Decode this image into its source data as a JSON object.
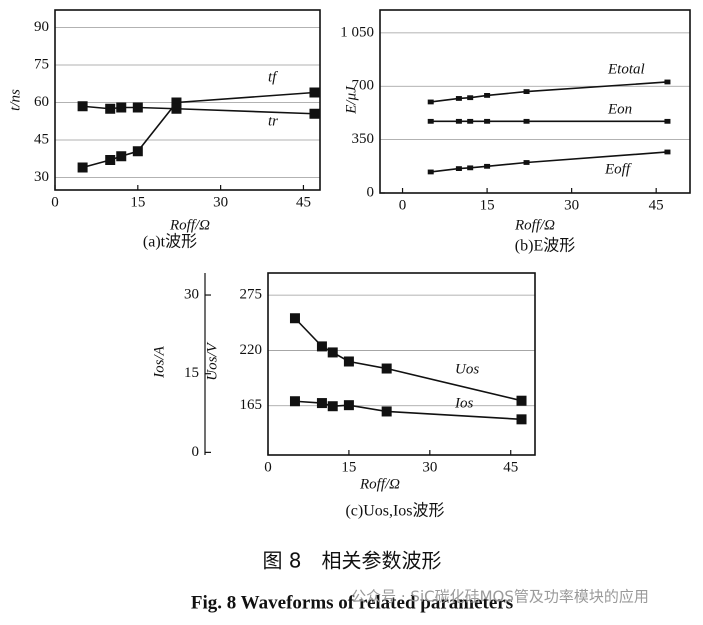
{
  "chart_data": [
    {
      "type": "line",
      "caption": "(a)t波形",
      "xlabel": "Roff/Ω",
      "ylabel": "t/ns",
      "x": [
        5,
        10,
        12,
        15,
        22,
        47
      ],
      "xlim": [
        0,
        48
      ],
      "xticks": [
        0,
        15,
        30,
        45
      ],
      "ylim": [
        25,
        97
      ],
      "yticks": [
        30,
        45,
        60,
        75,
        90
      ],
      "grid": true,
      "series": [
        {
          "name": "tf",
          "color": "#111111",
          "values": [
            34,
            37,
            38.5,
            40.5,
            60,
            64
          ]
        },
        {
          "name": "tr",
          "color": "#111111",
          "values": [
            58.5,
            57.5,
            58,
            58,
            57.5,
            55.5
          ]
        }
      ]
    },
    {
      "type": "line",
      "caption": "(b)E波形",
      "xlabel": "Roff/Ω",
      "ylabel": "E/μJ",
      "x": [
        5,
        10,
        12,
        15,
        22,
        47
      ],
      "xlim": [
        -4,
        51
      ],
      "xticks": [
        0,
        15,
        30,
        45
      ],
      "ylim": [
        0,
        1200
      ],
      "yticks": [
        0,
        350,
        700,
        {
          "value": 1050,
          "label": "1 050"
        }
      ],
      "grid": true,
      "series": [
        {
          "name": "Etotal",
          "color": "#111111",
          "values": [
            597,
            620,
            625,
            640,
            665,
            728
          ]
        },
        {
          "name": "Eon",
          "color": "#111111",
          "values": [
            470,
            470,
            470,
            470,
            470,
            470
          ]
        },
        {
          "name": "Eoff",
          "color": "#111111",
          "values": [
            138,
            160,
            165,
            175,
            200,
            269
          ]
        }
      ]
    },
    {
      "type": "line",
      "caption": "(c)Uos,Ios波形",
      "xlabel": "Roff/Ω",
      "ylabel": "Uos/V",
      "y2label": "Ios/A",
      "x": [
        5,
        10,
        12,
        15,
        22,
        47
      ],
      "xlim": [
        0,
        49.5
      ],
      "xticks": [
        0,
        15,
        30,
        45
      ],
      "ylim": [
        116,
        297
      ],
      "yticks": [
        165,
        220,
        275
      ],
      "y2lim": [
        -0.5,
        34.2
      ],
      "y2ticks": [
        0,
        15,
        30
      ],
      "grid": true,
      "series": [
        {
          "name": "Uos",
          "color": "#111111",
          "values": [
            252,
            224,
            218,
            209,
            202,
            170
          ]
        },
        {
          "name": "Ios",
          "color": "#111111",
          "axis": "y2",
          "values": [
            9.75,
            9.4,
            8.8,
            9,
            7.8,
            6.3
          ]
        }
      ]
    }
  ],
  "figure_title_cn": "图 8　相关参数波形",
  "figure_title_en": "Fig. 8 Waveforms of related parameters",
  "watermark": "公众号 · SiC碳化硅MOS管及功率模块的应用"
}
